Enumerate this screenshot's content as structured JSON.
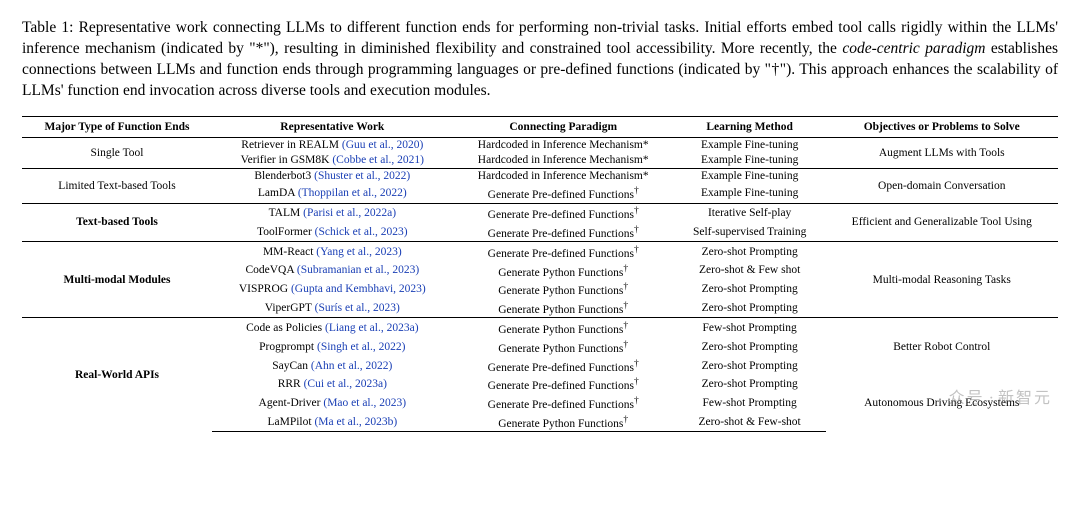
{
  "caption": {
    "prefix": "Table 1: ",
    "text_before_emph": "Representative work connecting LLMs to different function ends for performing non-trivial tasks. Initial efforts embed tool calls rigidly within the LLMs' inference mechanism (indicated by \"*\"), resulting in diminished flexibility and constrained tool accessibility. More recently, the ",
    "emph": "code-centric paradigm",
    "text_after_emph": " establishes connections between LLMs and function ends through programming languages or pre-defined functions (indicated by \"†\"). This approach enhances the scalability of LLMs' function end invocation across diverse tools and execution modules."
  },
  "columns": [
    "Major Type of Function Ends",
    "Representative Work",
    "Connecting Paradigm",
    "Learning Method",
    "Objectives or Problems to Solve"
  ],
  "link_color": "#1a3fb5",
  "groups": [
    {
      "category": "Single Tool",
      "category_bold": false,
      "objective": "Augment LLMs with Tools",
      "rows": [
        {
          "work_plain": "Retriever in REALM ",
          "work_cite": "(Guu et al., 2020)",
          "paradigm": "Hardcoded in Inference Mechanism*",
          "method": "Example Fine-tuning"
        },
        {
          "work_plain": "Verifier in GSM8K ",
          "work_cite": "(Cobbe et al., 2021)",
          "paradigm": "Hardcoded in Inference Mechanism*",
          "method": "Example Fine-tuning"
        }
      ]
    },
    {
      "category": "Limited Text-based Tools",
      "category_bold": false,
      "objective": "Open-domain Conversation",
      "rows": [
        {
          "work_plain": "Blenderbot3 ",
          "work_cite": "(Shuster et al., 2022)",
          "paradigm": "Hardcoded in Inference Mechanism*",
          "method": "Example Fine-tuning"
        },
        {
          "work_plain": "LamDA ",
          "work_cite": "(Thoppilan et al., 2022)",
          "paradigm": "Generate Pre-defined Functions†",
          "method": "Example Fine-tuning"
        }
      ]
    },
    {
      "category": "Text-based Tools",
      "category_bold": true,
      "objective": "Efficient and Generalizable Tool Using",
      "rows": [
        {
          "work_plain": "TALM ",
          "work_cite": "(Parisi et al., 2022a)",
          "paradigm": "Generate Pre-defined Functions†",
          "method": "Iterative Self-play"
        },
        {
          "work_plain": "ToolFormer ",
          "work_cite": "(Schick et al., 2023)",
          "paradigm": "Generate Pre-defined Functions†",
          "method": "Self-supervised Training"
        }
      ]
    },
    {
      "category": "Multi-modal Modules",
      "category_bold": true,
      "objective": "Multi-modal Reasoning Tasks",
      "rows": [
        {
          "work_plain": "MM-React ",
          "work_cite": "(Yang et al., 2023)",
          "paradigm": "Generate Pre-defined Functions†",
          "method": "Zero-shot Prompting"
        },
        {
          "work_plain": "CodeVQA ",
          "work_cite": "(Subramanian et al., 2023)",
          "paradigm": "Generate Python Functions†",
          "method": "Zero-shot & Few shot"
        },
        {
          "work_plain": "VISPROG ",
          "work_cite": "(Gupta and Kembhavi, 2023)",
          "paradigm": "Generate Python Functions†",
          "method": "Zero-shot Prompting"
        },
        {
          "work_plain": "ViperGPT ",
          "work_cite": "(Surís et al., 2023)",
          "paradigm": "Generate Python Functions†",
          "method": "Zero-shot Prompting"
        }
      ]
    },
    {
      "category": "Real-World APIs",
      "category_bold": true,
      "objective_splits": [
        {
          "text": "Better Robot Control",
          "span": 3
        },
        {
          "text": "Autonomous Driving Ecosystems",
          "span": 3
        }
      ],
      "rows": [
        {
          "work_plain": "Code as Policies ",
          "work_cite": "(Liang et al., 2023a)",
          "paradigm": "Generate Python Functions†",
          "method": "Few-shot Prompting"
        },
        {
          "work_plain": "Progprompt ",
          "work_cite": "(Singh et al., 2022)",
          "paradigm": "Generate Python Functions†",
          "method": "Zero-shot Prompting"
        },
        {
          "work_plain": "SayCan ",
          "work_cite": "(Ahn et al., 2022)",
          "paradigm": "Generate Pre-defined Functions†",
          "method": "Zero-shot Prompting"
        },
        {
          "work_plain": "RRR ",
          "work_cite": "(Cui et al., 2023a)",
          "paradigm": "Generate Pre-defined Functions†",
          "method": "Zero-shot Prompting"
        },
        {
          "work_plain": "Agent-Driver ",
          "work_cite": "(Mao et al., 2023)",
          "paradigm": "Generate Pre-defined Functions†",
          "method": "Few-shot Prompting"
        },
        {
          "work_plain": "LaMPilot ",
          "work_cite": "(Ma et al., 2023b)",
          "paradigm": "Generate Python Functions†",
          "method": "Zero-shot & Few-shot"
        }
      ]
    }
  ],
  "watermark": {
    "left": "众号",
    "sep": " · ",
    "right": "新智元"
  }
}
